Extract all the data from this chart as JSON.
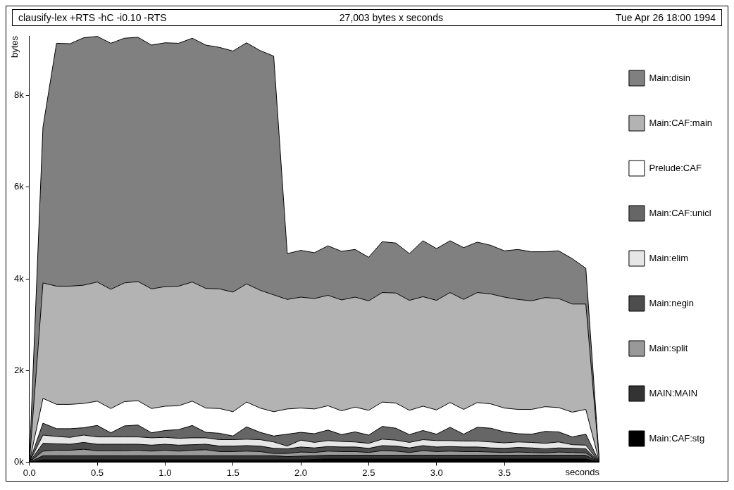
{
  "chart_data": {
    "type": "area",
    "title": "clausify-lex +RTS -hC -i0.10 -RTS",
    "subtitle": "27,003 bytes x seconds",
    "annotations": [
      "Tue Apr 26 18:00 1994"
    ],
    "xlabel": "seconds",
    "ylabel": "bytes",
    "stacked": true,
    "legend": "right",
    "grid": false,
    "x": [
      0,
      0.1,
      0.2,
      0.3,
      0.4,
      0.5,
      0.6,
      0.7,
      0.8,
      0.9,
      1.0,
      1.1,
      1.2,
      1.3,
      1.4,
      1.5,
      1.6,
      1.7,
      1.8,
      1.9,
      2.0,
      2.1,
      2.2,
      2.3,
      2.4,
      2.5,
      2.6,
      2.7,
      2.8,
      2.9,
      3.0,
      3.1,
      3.2,
      3.3,
      3.4,
      3.5,
      3.6,
      3.7,
      3.8,
      3.9,
      4.0,
      4.1,
      4.2
    ],
    "xlim": [
      0,
      4.2
    ],
    "xticks": [
      {
        "value": 0,
        "label": "0.0"
      },
      0.5,
      {
        "value": 1,
        "label": "1.0"
      },
      1.5,
      {
        "value": 2,
        "label": "2.0"
      },
      2.5,
      {
        "value": 3,
        "label": "3.0"
      },
      3.5
    ],
    "ylim": [
      0,
      9300
    ],
    "yticks": [
      {
        "value": 0,
        "label": "0k"
      },
      {
        "value": 2000,
        "label": "2k"
      },
      {
        "value": 4000,
        "label": "4k"
      },
      {
        "value": 6000,
        "label": "6k"
      },
      {
        "value": 8000,
        "label": "8k"
      }
    ],
    "series": [
      {
        "name": "Main:CAF:stg",
        "color": "#000000",
        "values": [
          0,
          50,
          50,
          50,
          50,
          50,
          50,
          50,
          50,
          50,
          50,
          50,
          50,
          50,
          50,
          50,
          50,
          50,
          50,
          50,
          50,
          60,
          70,
          70,
          70,
          70,
          70,
          70,
          70,
          70,
          70,
          70,
          70,
          70,
          70,
          70,
          70,
          70,
          70,
          70,
          70,
          70,
          0
        ]
      },
      {
        "name": "MAIN:MAIN",
        "color": "#333333",
        "values": [
          0,
          90,
          90,
          90,
          90,
          90,
          90,
          90,
          90,
          90,
          90,
          90,
          90,
          90,
          90,
          90,
          90,
          90,
          90,
          70,
          80,
          80,
          80,
          80,
          80,
          80,
          80,
          80,
          80,
          80,
          80,
          80,
          80,
          80,
          80,
          80,
          80,
          80,
          80,
          80,
          80,
          80,
          0
        ]
      },
      {
        "name": "Main:split",
        "color": "#999999",
        "values": [
          0,
          100,
          120,
          120,
          140,
          110,
          110,
          110,
          120,
          100,
          120,
          100,
          120,
          130,
          90,
          90,
          100,
          90,
          50,
          70,
          90,
          70,
          90,
          80,
          80,
          60,
          100,
          90,
          60,
          100,
          80,
          90,
          80,
          80,
          70,
          60,
          70,
          60,
          50,
          70,
          60,
          50,
          0
        ]
      },
      {
        "name": "Main:negin",
        "color": "#4d4d4d",
        "values": [
          0,
          170,
          140,
          130,
          150,
          140,
          140,
          140,
          130,
          130,
          130,
          130,
          120,
          120,
          120,
          120,
          120,
          120,
          110,
          100,
          110,
          100,
          100,
          100,
          100,
          90,
          110,
          110,
          100,
          110,
          100,
          100,
          100,
          100,
          90,
          90,
          100,
          100,
          90,
          90,
          90,
          90,
          0
        ]
      },
      {
        "name": "Main:elim",
        "color": "#e6e6e6",
        "values": [
          0,
          180,
          160,
          150,
          160,
          160,
          160,
          160,
          160,
          160,
          150,
          150,
          150,
          140,
          140,
          140,
          140,
          140,
          140,
          60,
          150,
          120,
          130,
          120,
          110,
          110,
          140,
          130,
          120,
          130,
          140,
          130,
          130,
          130,
          130,
          120,
          120,
          120,
          120,
          130,
          80,
          80,
          0
        ]
      },
      {
        "name": "Main:CAF:unicl",
        "color": "#666666",
        "values": [
          0,
          260,
          170,
          190,
          160,
          250,
          90,
          240,
          260,
          110,
          150,
          190,
          270,
          120,
          140,
          80,
          270,
          160,
          130,
          260,
          170,
          190,
          230,
          150,
          220,
          180,
          280,
          260,
          170,
          200,
          140,
          290,
          150,
          300,
          300,
          240,
          180,
          180,
          260,
          220,
          170,
          240,
          0
        ]
      },
      {
        "name": "Prelude:CAF",
        "color": "#ffffff",
        "values": [
          0,
          540,
          530,
          530,
          530,
          530,
          530,
          530,
          530,
          530,
          530,
          520,
          530,
          530,
          540,
          530,
          540,
          530,
          530,
          550,
          530,
          540,
          530,
          520,
          540,
          540,
          530,
          550,
          530,
          530,
          530,
          540,
          540,
          540,
          530,
          520,
          530,
          540,
          540,
          530,
          540,
          540,
          0
        ]
      },
      {
        "name": "Main:CAF:main",
        "color": "#b3b3b3",
        "values": [
          0,
          2520,
          2580,
          2580,
          2580,
          2600,
          2600,
          2590,
          2600,
          2610,
          2610,
          2610,
          2600,
          2610,
          2610,
          2610,
          2580,
          2570,
          2550,
          2390,
          2420,
          2410,
          2410,
          2420,
          2400,
          2390,
          2390,
          2400,
          2400,
          2390,
          2390,
          2400,
          2400,
          2400,
          2400,
          2420,
          2400,
          2370,
          2380,
          2380,
          2360,
          2300,
          0
        ]
      },
      {
        "name": "Main:disin",
        "color": "#808080",
        "values": [
          0,
          3400,
          5300,
          5290,
          5400,
          5360,
          5370,
          5340,
          5330,
          5320,
          5320,
          5300,
          5320,
          5310,
          5270,
          5260,
          5260,
          5230,
          5210,
          1000,
          1020,
          1000,
          1080,
          1060,
          1040,
          950,
          1110,
          1090,
          1020,
          1220,
          1130,
          1130,
          1130,
          1100,
          1060,
          1010,
          1090,
          1070,
          1000,
          1040,
          990,
          780,
          0
        ]
      }
    ]
  }
}
